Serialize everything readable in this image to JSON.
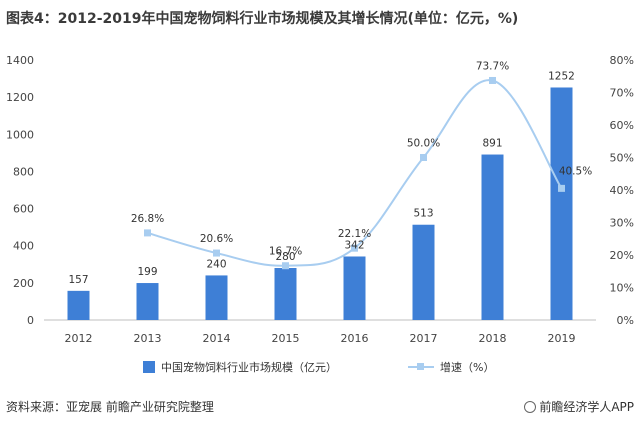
{
  "title": "图表4：2012-2019年中国宠物饲料行业市场规模及其增长情况(单位：亿元，%)",
  "chart_data": {
    "type": "bar+line",
    "categories": [
      "2012",
      "2013",
      "2014",
      "2015",
      "2016",
      "2017",
      "2018",
      "2019"
    ],
    "series": [
      {
        "name": "中国宠物饲料行业市场规模（亿元）",
        "type": "bar",
        "axis": "left",
        "values": [
          157,
          199,
          240,
          280,
          342,
          513,
          891,
          1252
        ],
        "labels": [
          "157",
          "199",
          "240",
          "280",
          "342",
          "513",
          "891",
          "1252"
        ]
      },
      {
        "name": "增速（%）",
        "type": "line",
        "axis": "right",
        "values": [
          null,
          26.8,
          20.6,
          16.7,
          22.1,
          50.0,
          73.7,
          40.5
        ],
        "labels": [
          "",
          "26.8%",
          "20.6%",
          "16.7%",
          "22.1%",
          "50.0%",
          "73.7%",
          "40.5%"
        ]
      }
    ],
    "y_left": {
      "min": 0,
      "max": 1400,
      "ticks": [
        "0",
        "200",
        "400",
        "600",
        "800",
        "1000",
        "1200",
        "1400"
      ]
    },
    "y_right": {
      "min": 0,
      "max": 80,
      "ticks": [
        "0%",
        "10%",
        "20%",
        "30%",
        "40%",
        "50%",
        "60%",
        "70%",
        "80%"
      ]
    },
    "grid": false,
    "legend_position": "bottom",
    "colors": {
      "bar": "#3e7fd6",
      "line": "#a8cdf0",
      "marker": "#a8cdf0"
    }
  },
  "footer": {
    "source": "资料来源：亚宠展 前瞻产业研究院整理",
    "brand": "前瞻经济学人APP",
    "brand_icon": "qianzhan-logo-icon"
  }
}
